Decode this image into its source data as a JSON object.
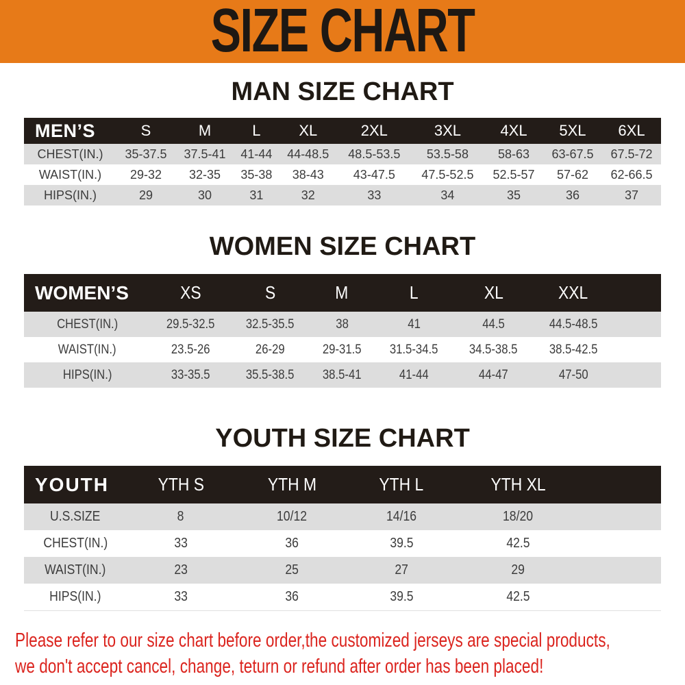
{
  "page_title": "SIZE CHART",
  "colors": {
    "banner_orange": "#E77A18",
    "table_header_black": "#231C18",
    "row_stripe_gray": "#DDDDDD",
    "note_red": "#DB241E",
    "title_black": "#1E1813",
    "value_text": "#3C3C3C"
  },
  "chart_data": [
    {
      "type": "table",
      "title": "MAN SIZE CHART",
      "columns": [
        "MEN’S",
        "S",
        "M",
        "L",
        "XL",
        "2XL",
        "3XL",
        "4XL",
        "5XL",
        "6XL"
      ],
      "rows": [
        [
          "CHEST(IN.)",
          "35-37.5",
          "37.5-41",
          "41-44",
          "44-48.5",
          "48.5-53.5",
          "53.5-58",
          "58-63",
          "63-67.5",
          "67.5-72"
        ],
        [
          "WAIST(IN.)",
          "29-32",
          "32-35",
          "35-38",
          "38-43",
          "43-47.5",
          "47.5-52.5",
          "52.5-57",
          "57-62",
          "62-66.5"
        ],
        [
          "HIPS(IN.)",
          "29",
          "30",
          "31",
          "32",
          "33",
          "34",
          "35",
          "36",
          "37"
        ]
      ]
    },
    {
      "type": "table",
      "title": "WOMEN SIZE CHART",
      "columns": [
        "WOMEN’S",
        "XS",
        "S",
        "M",
        "L",
        "XL",
        "XXL"
      ],
      "rows": [
        [
          "CHEST(IN.)",
          "29.5-32.5",
          "32.5-35.5",
          "38",
          "41",
          "44.5",
          "44.5-48.5"
        ],
        [
          "WAIST(IN.)",
          "23.5-26",
          "26-29",
          "29-31.5",
          "31.5-34.5",
          "34.5-38.5",
          "38.5-42.5"
        ],
        [
          "HIPS(IN.)",
          "33-35.5",
          "35.5-38.5",
          "38.5-41",
          "41-44",
          "44-47",
          "47-50"
        ]
      ]
    },
    {
      "type": "table",
      "title": "YOUTH SIZE CHART",
      "columns": [
        "YOUTH",
        "YTH S",
        "YTH M",
        "YTH L",
        "YTH XL"
      ],
      "rows": [
        [
          "U.S.SIZE",
          "8",
          "10/12",
          "14/16",
          "18/20"
        ],
        [
          "CHEST(IN.)",
          "33",
          "36",
          "39.5",
          "42.5"
        ],
        [
          "WAIST(IN.)",
          "23",
          "25",
          "27",
          "29"
        ],
        [
          "HIPS(IN.)",
          "33",
          "36",
          "39.5",
          "42.5"
        ]
      ]
    }
  ],
  "footer": {
    "line1": "Please refer to our size chart before order,the customized jerseys are special products,",
    "line2": "we don't accept cancel, change, teturn or refund after order has been placed!"
  }
}
